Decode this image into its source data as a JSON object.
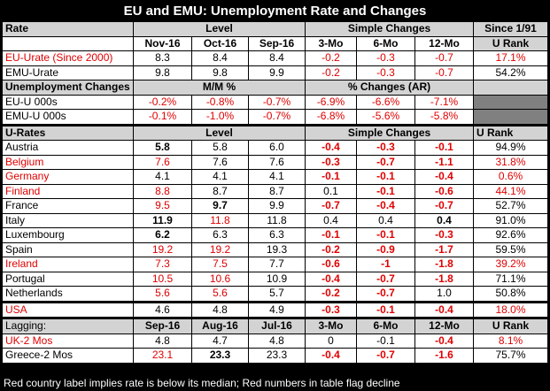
{
  "title": "EU and EMU: Unemployment Rate and Changes",
  "header1": [
    "Rate",
    "Level",
    "Simple Changes",
    "Since 1/91"
  ],
  "header2": [
    "Nov-16",
    "Oct-16",
    "Sep-16",
    "3-Mo",
    "6-Mo",
    "12-Mo",
    "U Rank"
  ],
  "rate_rows": [
    {
      "label": "EU-Urate (Since 2000)",
      "vals": [
        "8.3",
        "8.4",
        "8.4",
        "-0.2",
        "-0.3",
        "-0.7",
        "17.1%"
      ]
    },
    {
      "label": "EMU-Urate",
      "vals": [
        "9.8",
        "9.8",
        "9.9",
        "-0.2",
        "-0.3",
        "-0.7",
        "54.2%"
      ]
    }
  ],
  "uc_header": [
    "Unemployment Changes",
    "M/M %",
    "% Changes (AR)"
  ],
  "uc_rows": [
    {
      "label": "EU-U 000s",
      "vals": [
        "-0.2%",
        "-0.8%",
        "-0.7%",
        "-6.9%",
        "-6.6%",
        "-7.1%"
      ]
    },
    {
      "label": "EMU-U 000s",
      "vals": [
        "-0.1%",
        "-1.0%",
        "-0.7%",
        "-6.8%",
        "-5.6%",
        "-5.8%"
      ]
    }
  ],
  "ur_header": [
    "U-Rates",
    "Level",
    "Simple Changes",
    "U Rank"
  ],
  "countries": [
    {
      "label": "Austria",
      "vals": [
        "5.8",
        "5.8",
        "6.0",
        "-0.4",
        "-0.3",
        "-0.1",
        "94.9%"
      ]
    },
    {
      "label": "Belgium",
      "vals": [
        "7.6",
        "7.6",
        "7.6",
        "-0.3",
        "-0.7",
        "-1.1",
        "31.8%"
      ]
    },
    {
      "label": "Germany",
      "vals": [
        "4.1",
        "4.1",
        "4.1",
        "-0.1",
        "-0.1",
        "-0.4",
        "0.6%"
      ]
    },
    {
      "label": "Finland",
      "vals": [
        "8.8",
        "8.7",
        "8.7",
        "0.1",
        "-0.1",
        "-0.6",
        "44.1%"
      ]
    },
    {
      "label": "France",
      "vals": [
        "9.5",
        "9.7",
        "9.9",
        "-0.7",
        "-0.4",
        "-0.7",
        "52.7%"
      ]
    },
    {
      "label": "Italy",
      "vals": [
        "11.9",
        "11.8",
        "11.8",
        "0.4",
        "0.4",
        "0.4",
        "91.0%"
      ]
    },
    {
      "label": "Luxembourg",
      "vals": [
        "6.2",
        "6.3",
        "6.3",
        "-0.1",
        "-0.1",
        "-0.3",
        "92.6%"
      ]
    },
    {
      "label": "Spain",
      "vals": [
        "19.2",
        "19.2",
        "19.3",
        "-0.2",
        "-0.9",
        "-1.7",
        "59.5%"
      ]
    },
    {
      "label": "Ireland",
      "vals": [
        "7.3",
        "7.5",
        "7.7",
        "-0.6",
        "-1",
        "-1.8",
        "39.2%"
      ]
    },
    {
      "label": "Portugal",
      "vals": [
        "10.5",
        "10.6",
        "10.9",
        "-0.4",
        "-0.7",
        "-1.8",
        "71.1%"
      ]
    },
    {
      "label": "Netherlands",
      "vals": [
        "5.6",
        "5.6",
        "5.7",
        "-0.2",
        "-0.7",
        "1.0",
        "50.8%"
      ]
    }
  ],
  "usa": {
    "label": "USA",
    "vals": [
      "4.6",
      "4.8",
      "4.9",
      "-0.3",
      "-0.1",
      "-0.4",
      "18.0%"
    ]
  },
  "lag_header": [
    "Lagging:",
    "Sep-16",
    "Aug-16",
    "Jul-16",
    "3-Mo",
    "6-Mo",
    "12-Mo",
    "U Rank"
  ],
  "lagging": [
    {
      "label": "UK-2 Mos",
      "vals": [
        "4.8",
        "4.7",
        "4.8",
        "0",
        "-0.1",
        "-0.4",
        "8.1%"
      ]
    },
    {
      "label": "Greece-2 Mos",
      "vals": [
        "23.1",
        "23.3",
        "23.3",
        "-0.4",
        "-0.7",
        "-1.6",
        "75.7%"
      ]
    }
  ],
  "footnote": "Red country label implies rate is below its median; Red numbers in table flag decline"
}
